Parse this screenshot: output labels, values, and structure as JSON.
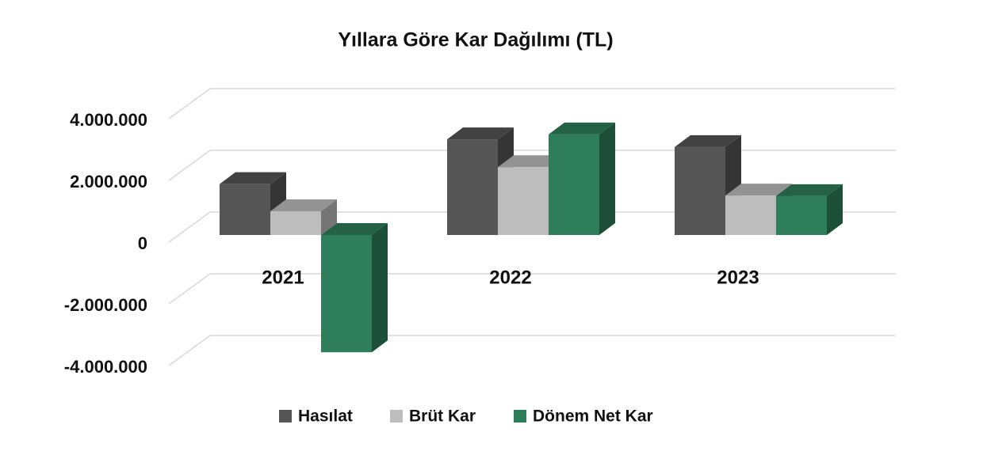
{
  "chart_data": {
    "type": "bar3d",
    "title": "Yıllara Göre Kar Dağılımı (TL)",
    "categories": [
      "2021",
      "2022",
      "2023"
    ],
    "series": [
      {
        "name": "Hasılat",
        "color": "#555555",
        "values": [
          1650000,
          3100000,
          2850000
        ]
      },
      {
        "name": "Brüt Kar",
        "color": "#bdbdbd",
        "values": [
          770000,
          2200000,
          1280000
        ]
      },
      {
        "name": "Dönem Net Kar",
        "color": "#2e7d5b",
        "values": [
          -3800000,
          3260000,
          1260000
        ]
      }
    ],
    "ylim": [
      -4000000,
      4000000
    ],
    "yticks": [
      {
        "value": -4000000,
        "label": "-4.000.000"
      },
      {
        "value": -2000000,
        "label": "-2.000.000"
      },
      0,
      {
        "value": 2000000,
        "label": "2.000.000"
      },
      {
        "value": 4000000,
        "label": "4.000.000"
      }
    ],
    "grid": true,
    "legend": "bottom"
  }
}
